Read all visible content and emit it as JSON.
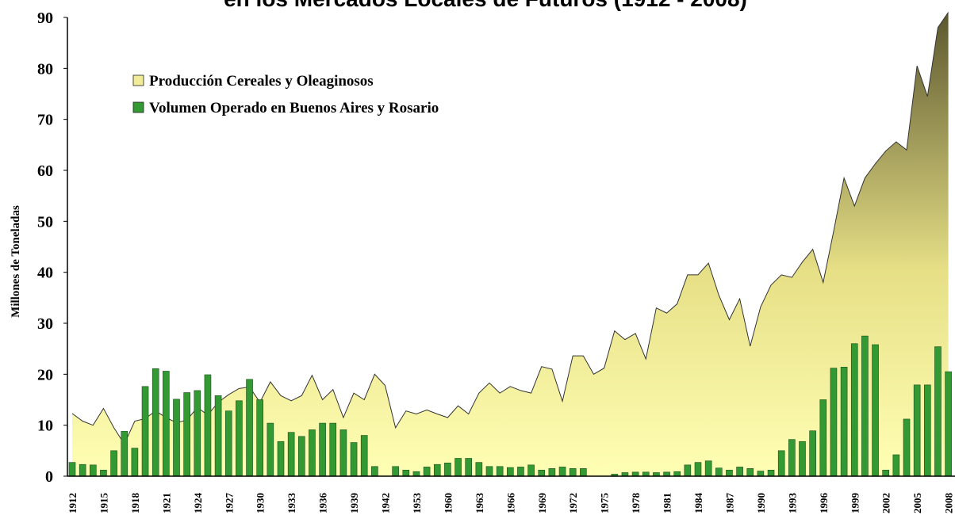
{
  "chart_data": {
    "type": "area_bar",
    "title": "en los Mercados Locales de Futuros (1912 - 2008)",
    "y_label": "Millones de Toneladas",
    "categories": [
      "1912",
      null,
      null,
      "1915",
      null,
      null,
      "1918",
      null,
      null,
      "1921",
      null,
      null,
      "1924",
      null,
      null,
      "1927",
      null,
      null,
      "1930",
      null,
      null,
      "1933",
      null,
      null,
      "1936",
      null,
      null,
      "1939",
      null,
      null,
      "1942",
      null,
      null,
      "1953",
      null,
      null,
      "1960",
      null,
      null,
      "1963",
      null,
      null,
      "1966",
      null,
      null,
      "1969",
      null,
      null,
      "1972",
      null,
      null,
      "1975",
      null,
      null,
      "1978",
      null,
      null,
      "1981",
      null,
      null,
      "1984",
      null,
      null,
      "1987",
      null,
      null,
      "1990",
      null,
      null,
      "1993",
      null,
      null,
      "1996",
      null,
      null,
      "1999",
      null,
      null,
      "2002",
      null,
      null,
      "2005",
      null,
      null,
      "2008"
    ],
    "series": [
      {
        "name": "Producción Cereales y Oleaginosos",
        "type": "area",
        "color": "#f0ec98",
        "values": [
          12.3,
          10.8,
          10,
          13.3,
          9.5,
          6.3,
          10.8,
          11.3,
          12.8,
          11.5,
          10.5,
          11,
          13.5,
          12,
          14.5,
          16,
          17.2,
          17.5,
          14.5,
          18.5,
          15.8,
          14.8,
          15.8,
          19.8,
          15,
          17,
          11.5,
          16.3,
          15,
          20,
          17.8,
          9.5,
          12.8,
          12.2,
          13,
          12.2,
          11.5,
          13.8,
          12.2,
          16.3,
          18.3,
          16.3,
          17.6,
          16.8,
          16.3,
          21.5,
          21,
          14.7,
          23.6,
          23.6,
          20,
          21.2,
          28.5,
          26.8,
          28,
          23,
          33,
          32,
          33.8,
          39.5,
          39.5,
          41.8,
          35.5,
          30.7,
          34.8,
          25.5,
          33.2,
          37.5,
          39.5,
          39,
          42,
          44.5,
          38,
          48,
          58.5,
          53,
          58.5,
          61.3,
          63.8,
          65.6,
          64,
          80.5,
          74.5,
          88,
          91
        ]
      },
      {
        "name": "Volumen Operado en Buenos Aires y Rosario",
        "type": "bar",
        "color": "#339933",
        "values": [
          2.7,
          2.3,
          2.2,
          1.2,
          5,
          8.8,
          5.5,
          17.6,
          21.1,
          20.6,
          15.1,
          16.4,
          16.8,
          19.9,
          15.8,
          12.8,
          14.8,
          19,
          15,
          10.4,
          6.8,
          8.6,
          7.8,
          9.1,
          10.4,
          10.4,
          9.1,
          6.6,
          8,
          1.9,
          0,
          1.9,
          1.2,
          0.9,
          1.8,
          2.3,
          2.6,
          3.5,
          3.5,
          2.7,
          1.9,
          1.9,
          1.7,
          1.8,
          2.2,
          1.2,
          1.5,
          1.8,
          1.5,
          1.5,
          0,
          0,
          0.4,
          0.7,
          0.8,
          0.8,
          0.7,
          0.8,
          0.9,
          2.2,
          2.7,
          3,
          1.6,
          1.2,
          1.8,
          1.5,
          1,
          1.2,
          5,
          7.2,
          6.8,
          8.9,
          15,
          21.2,
          21.4,
          26,
          27.5,
          25.8,
          1.2,
          4.2,
          11.2,
          17.9,
          17.9,
          25.4,
          20.5
        ]
      }
    ],
    "ylim": [
      0,
      90
    ],
    "yticks": [
      0,
      10,
      20,
      30,
      40,
      50,
      60,
      70,
      80,
      90
    ],
    "legend": "upper left"
  }
}
